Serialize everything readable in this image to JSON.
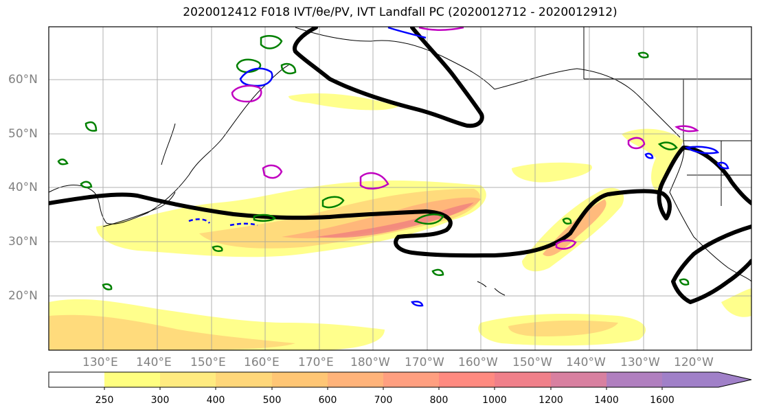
{
  "title": "2020012412 F018 IVT/θe/PV, IVT Landfall PC (2020012712 - 2020012912)",
  "map": {
    "lat_labels": [
      "60°N",
      "50°N",
      "40°N",
      "30°N",
      "20°N"
    ],
    "lon_labels": [
      "130°E",
      "140°E",
      "150°E",
      "160°E",
      "170°E",
      "180°W",
      "170°W",
      "160°W",
      "150°W",
      "140°W",
      "130°W",
      "120°W"
    ],
    "colors": {
      "ivt_fill_low": "#ffff80",
      "ivt_fill_mid": "#ffb347",
      "ivt_fill_high": "#f08080",
      "contour_main": "#000000",
      "theta_e_contour": "#008000",
      "pv_positive": "#0000ff",
      "pv_magenta": "#c000c0",
      "grid": "#a0a0a0"
    }
  },
  "colorbar": {
    "labels": [
      "250",
      "300",
      "400",
      "500",
      "600",
      "700",
      "800",
      "1000",
      "1200",
      "1400",
      "1600"
    ],
    "colors": [
      "#ffffff",
      "#ffff80",
      "#ffeb80",
      "#ffd77a",
      "#ffc675",
      "#ffb37a",
      "#ff9f80",
      "#ff8a80",
      "#f0808a",
      "#d880a0",
      "#b07fbf",
      "#a080c8"
    ]
  }
}
